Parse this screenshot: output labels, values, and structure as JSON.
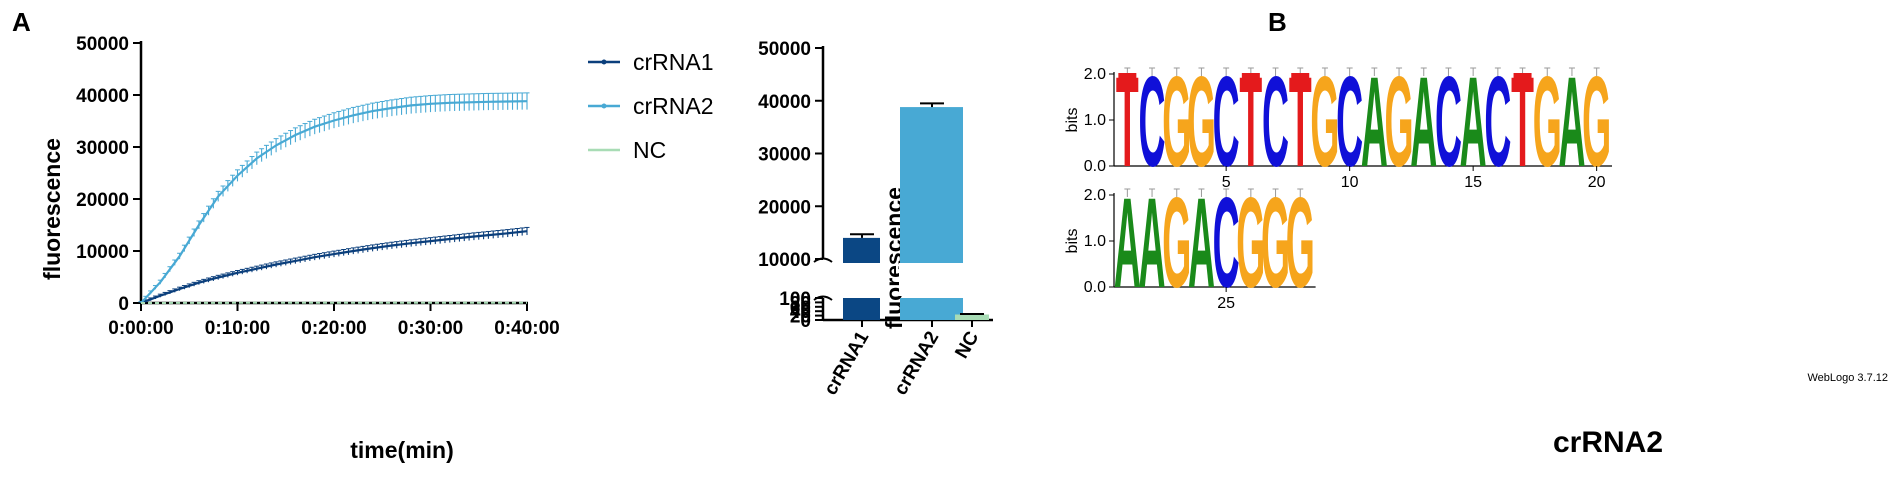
{
  "panels": {
    "a": "A",
    "b": "B"
  },
  "chart_data": [
    {
      "type": "line",
      "x_ticks": [
        "0:00:00",
        "0:10:00",
        "0:20:00",
        "0:30:00",
        "0:40:00"
      ],
      "xlabel": "time(min)",
      "ylabel": "fluorescence",
      "xlim_minutes": [
        0,
        40
      ],
      "ylim": [
        0,
        50000
      ],
      "y_ticks": [
        "0",
        "10000",
        "20000",
        "30000",
        "40000",
        "50000"
      ],
      "legend_position": "right",
      "series": [
        {
          "name": "crRNA1",
          "color": "#0b3f7c",
          "x_minutes": [
            0,
            2,
            4,
            6,
            8,
            10,
            12,
            14,
            16,
            18,
            20,
            22,
            24,
            26,
            28,
            30,
            32,
            34,
            36,
            38,
            40
          ],
          "values": [
            0,
            1400,
            2700,
            3900,
            4900,
            5800,
            6600,
            7400,
            8100,
            8800,
            9400,
            10000,
            10550,
            11050,
            11500,
            11900,
            12300,
            12700,
            13050,
            13400,
            13800
          ]
        },
        {
          "name": "crRNA2",
          "color": "#48a9d4",
          "x_minutes": [
            0,
            2,
            4,
            6,
            8,
            10,
            12,
            14,
            16,
            18,
            20,
            22,
            24,
            26,
            28,
            30,
            32,
            34,
            36,
            38,
            40
          ],
          "values": [
            0,
            4000,
            9000,
            15000,
            20500,
            24500,
            27800,
            30300,
            32300,
            33900,
            35100,
            36100,
            36900,
            37500,
            38000,
            38300,
            38500,
            38600,
            38700,
            38750,
            38800
          ]
        },
        {
          "name": "NC",
          "color": "#a8dcb5",
          "x_minutes": [
            0,
            10,
            20,
            30,
            40
          ],
          "values": [
            0,
            30,
            40,
            40,
            40
          ]
        }
      ]
    },
    {
      "type": "bar",
      "categories": [
        "crRNA1",
        "crRNA2",
        "NC"
      ],
      "values": [
        14000,
        38800,
        25
      ],
      "errors": [
        700,
        700,
        2
      ],
      "colors": [
        "#0b4784",
        "#48a9d4",
        "#a8dcb5"
      ],
      "ylabel": "fluorescence",
      "axis_break": [
        100,
        10000
      ],
      "ylim": [
        0,
        50000
      ],
      "y_ticks_upper": [
        "10000",
        "20000",
        "30000",
        "40000",
        "50000"
      ],
      "y_ticks_lower": [
        "0",
        "20",
        "40",
        "60",
        "80",
        "100"
      ]
    },
    {
      "type": "sequence_logo",
      "ylabel": "bits",
      "y_ticks": [
        "0.0",
        "1.0",
        "2.0"
      ],
      "ylim": [
        0,
        2
      ],
      "sequence": [
        "T",
        "C",
        "G",
        "G",
        "C",
        "T",
        "C",
        "T",
        "G",
        "C",
        "A",
        "G",
        "A",
        "C",
        "A",
        "C",
        "T",
        "G",
        "A",
        "G",
        "A",
        "A",
        "G",
        "A",
        "C",
        "G",
        "G",
        "G"
      ],
      "rows": [
        {
          "start": 1,
          "end": 20,
          "x_ticks": [
            "5",
            "10",
            "15",
            "20"
          ]
        },
        {
          "start": 21,
          "end": 28,
          "x_ticks": [
            "25"
          ]
        }
      ],
      "letter_colors": {
        "A": "#1a8a1a",
        "C": "#1010d8",
        "G": "#f6a51c",
        "T": "#e41a1c"
      },
      "footer": "WebLogo 3.7.12",
      "caption": "crRNA2"
    }
  ]
}
